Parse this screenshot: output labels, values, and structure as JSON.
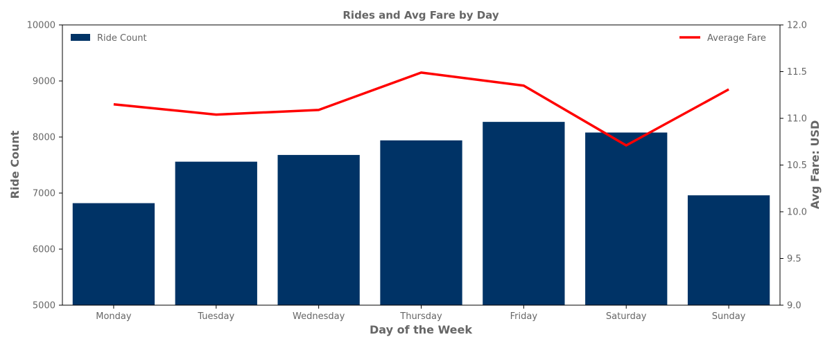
{
  "chart_data": {
    "type": "bar",
    "title": "Rides and Avg Fare by Day",
    "xlabel": "Day of the Week",
    "ylabel": "Ride Count",
    "y2label": "Avg Fare: USD",
    "categories": [
      "Monday",
      "Tuesday",
      "Wednesday",
      "Thursday",
      "Friday",
      "Saturday",
      "Sunday"
    ],
    "ylim": [
      5000,
      10000
    ],
    "y2lim": [
      9.0,
      12.0
    ],
    "yticks": [
      "5000",
      "6000",
      "7000",
      "8000",
      "9000",
      "10000"
    ],
    "y2ticks": [
      "9.0",
      "9.5",
      "10.0",
      "10.5",
      "11.0",
      "11.5",
      "12.0"
    ],
    "grid": false,
    "series": [
      {
        "name": "Ride Count",
        "type": "bar",
        "axis": "left",
        "color": "#003366",
        "legend_position": "top-left",
        "values": [
          6820,
          7560,
          7680,
          7940,
          8270,
          8080,
          6960
        ]
      },
      {
        "name": "Average Fare",
        "type": "line",
        "axis": "right",
        "color": "#ff0000",
        "legend_position": "top-right",
        "values": [
          11.15,
          11.04,
          11.09,
          11.49,
          11.35,
          10.71,
          11.31
        ]
      }
    ]
  }
}
